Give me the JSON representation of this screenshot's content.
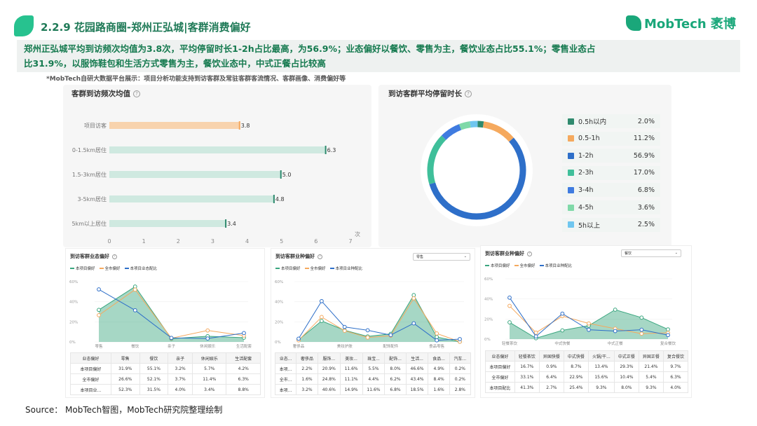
{
  "header": {
    "title": "2.2.9 花园路商圈-郑州正弘城|客群消费偏好",
    "logo_text": "MobTech 袤博"
  },
  "summary": {
    "line1": "郑州正弘城平均到访频次均值为3.8次，平均停留时长1-2h占比最高，为56.9%；业态偏好以餐饮、零售为主，餐饮业态占比55.1%；零售业态占",
    "line2": "比31.9%，以服饰鞋包和生活方式零售为主，餐饮业态中，中式正餐占比较高"
  },
  "note": "*MobTech自研大数据平台展示：项目分析功能支持到访客群及常驻客群客流情况、客群画像、消费偏好等",
  "source": "Source： MobTech智图，MobTech研究院整理绘制",
  "panel_freq": {
    "title": "客群到访频次均值",
    "unit": "次"
  },
  "panel_stay": {
    "title": "到访客群平均停留时长"
  },
  "panel_biz": {
    "title": "到访客群业态偏好"
  },
  "panel_retail": {
    "title": "到访客群业种偏好",
    "select": "零售"
  },
  "panel_food": {
    "title": "到访客群业种偏好",
    "select": "餐饮"
  },
  "mini_legend": {
    "a": "本项目偏好",
    "b": "全市偏好",
    "c": "本项目业态配比",
    "c2": "本项目业种配比"
  },
  "colors": {
    "green": "#3aa67f",
    "orange": "#f5a95e",
    "blue": "#2e6fc9",
    "bar": "#cfe9e0",
    "bar_first": "#f8d3ad"
  },
  "chart_data": [
    {
      "type": "bar",
      "orientation": "horizontal",
      "title": "客群到访频次均值",
      "categories": [
        "项目访客",
        "0-1.5km居住",
        "1.5-3km居住",
        "3-5km居住",
        "5km以上居住"
      ],
      "values": [
        3.8,
        6.3,
        5.0,
        4.8,
        3.4
      ],
      "value_labels": [
        "3.8",
        "6.3",
        "5.0",
        "4.8",
        "3.4"
      ],
      "xlim": [
        0,
        7
      ],
      "ticks": [
        "0",
        "1",
        "2",
        "3",
        "4",
        "5",
        "6",
        "7"
      ],
      "xlabel": "次"
    },
    {
      "type": "pie",
      "variant": "donut",
      "title": "到访客群平均停留时长",
      "labels": [
        "0.5h以内",
        "0.5-1h",
        "1-2h",
        "2-3h",
        "3-4h",
        "4-5h",
        "5h以上"
      ],
      "values": [
        2.0,
        11.2,
        56.9,
        17.0,
        6.8,
        3.6,
        2.5
      ],
      "value_labels": [
        "2.0%",
        "11.2%",
        "56.9%",
        "17.0%",
        "6.8%",
        "3.6%",
        "2.5%"
      ],
      "colors": [
        "#2f8a6e",
        "#f5a95e",
        "#2e6fc9",
        "#3fbf9a",
        "#3f7be0",
        "#7fd9a8",
        "#6fc6ef"
      ]
    },
    {
      "type": "line",
      "title": "到访客群业态偏好",
      "categories": [
        "零售",
        "餐饮",
        "亲子",
        "休闲娱乐",
        "生活配套"
      ],
      "ylim": [
        0,
        60
      ],
      "yticks": [
        "0%",
        "20%",
        "40%",
        "60%"
      ],
      "series": [
        {
          "name": "本项目偏好",
          "values": [
            31.9,
            55.1,
            3.2,
            5.7,
            4.2
          ]
        },
        {
          "name": "全市偏好",
          "values": [
            26.6,
            52.1,
            3.7,
            11.4,
            6.3
          ]
        },
        {
          "name": "本项目业态配比",
          "values": [
            52.3,
            31.5,
            4.0,
            3.4,
            8.8
          ]
        }
      ],
      "table": {
        "head": [
          "业态偏好",
          "零售",
          "餐饮",
          "亲子",
          "休闲娱乐",
          "生活配套"
        ],
        "rows": [
          [
            "本项目偏好",
            "31.9%",
            "55.1%",
            "3.2%",
            "5.7%",
            "4.2%"
          ],
          [
            "全市偏好",
            "26.6%",
            "52.1%",
            "3.7%",
            "11.4%",
            "6.3%"
          ],
          [
            "本项目业...",
            "52.3%",
            "31.5%",
            "4.0%",
            "3.4%",
            "8.8%"
          ]
        ]
      }
    },
    {
      "type": "line",
      "title": "到访客群业种偏好",
      "categories": [
        "奢侈品",
        "服饰...",
        "美妆...",
        "珠宝...",
        "配饰...",
        "生活...",
        "食品...",
        "汽车..."
      ],
      "axis_labels": [
        "奢侈品",
        "美妆护肤",
        "配饰配件",
        "食品零售"
      ],
      "ylim": [
        0,
        60
      ],
      "yticks": [
        "0%",
        "20%",
        "40%",
        "60%"
      ],
      "series": [
        {
          "name": "本项目偏好",
          "values": [
            2.2,
            20.9,
            11.6,
            5.5,
            8.0,
            46.6,
            4.9,
            0.2
          ]
        },
        {
          "name": "全市偏好",
          "values": [
            1.6,
            24.8,
            11.1,
            4.4,
            6.2,
            43.4,
            8.4,
            0.2
          ]
        },
        {
          "name": "本项目业种配比",
          "values": [
            3.2,
            40.6,
            14.9,
            11.6,
            6.8,
            18.5,
            1.6,
            2.8
          ]
        }
      ],
      "table": {
        "head": [
          "业态...",
          "奢侈品",
          "服饰...",
          "美妆...",
          "珠宝...",
          "配饰...",
          "生活...",
          "食品...",
          "汽车..."
        ],
        "rows": [
          [
            "本项...",
            "2.2%",
            "20.9%",
            "11.6%",
            "5.5%",
            "8.0%",
            "46.6%",
            "4.9%",
            "0.2%"
          ],
          [
            "全市...",
            "1.6%",
            "24.8%",
            "11.1%",
            "4.4%",
            "6.2%",
            "43.4%",
            "8.4%",
            "0.2%"
          ],
          [
            "本项...",
            "3.2%",
            "40.6%",
            "14.9%",
            "11.6%",
            "6.8%",
            "18.5%",
            "1.6%",
            "2.8%"
          ]
        ]
      }
    },
    {
      "type": "line",
      "title": "到访客群业种偏好",
      "categories": [
        "轻餐茶饮",
        "异国快餐",
        "中式快餐",
        "火锅/干...",
        "中式正餐",
        "异国正餐",
        "复合餐饮"
      ],
      "axis_labels": [
        "轻餐茶饮",
        "中式快餐",
        "中式正餐",
        "复合餐饮"
      ],
      "ylim": [
        0,
        60
      ],
      "yticks": [
        "0%",
        "20%",
        "40%",
        "60%"
      ],
      "series": [
        {
          "name": "本项目偏好",
          "values": [
            16.7,
            0.9,
            8.7,
            13.4,
            29.3,
            21.4,
            9.7
          ]
        },
        {
          "name": "全市偏好",
          "values": [
            33.1,
            6.4,
            22.9,
            15.6,
            10.4,
            5.4,
            6.3
          ]
        },
        {
          "name": "本项目业种配比",
          "values": [
            41.3,
            2.7,
            25.4,
            9.3,
            8.0,
            9.3,
            4.0
          ]
        }
      ],
      "table": {
        "head": [
          "业态偏好",
          "轻餐茶饮",
          "异国快餐",
          "中式快餐",
          "火锅/干...",
          "中式正餐",
          "异国正餐",
          "复合餐饮"
        ],
        "rows": [
          [
            "本项目偏好",
            "16.7%",
            "0.9%",
            "8.7%",
            "13.4%",
            "29.3%",
            "21.4%",
            "9.7%"
          ],
          [
            "全市偏好",
            "33.1%",
            "6.4%",
            "22.9%",
            "15.6%",
            "10.4%",
            "5.4%",
            "6.3%"
          ],
          [
            "本项目配比",
            "41.3%",
            "2.7%",
            "25.4%",
            "9.3%",
            "8.0%",
            "9.3%",
            "4.0%"
          ]
        ]
      }
    }
  ]
}
